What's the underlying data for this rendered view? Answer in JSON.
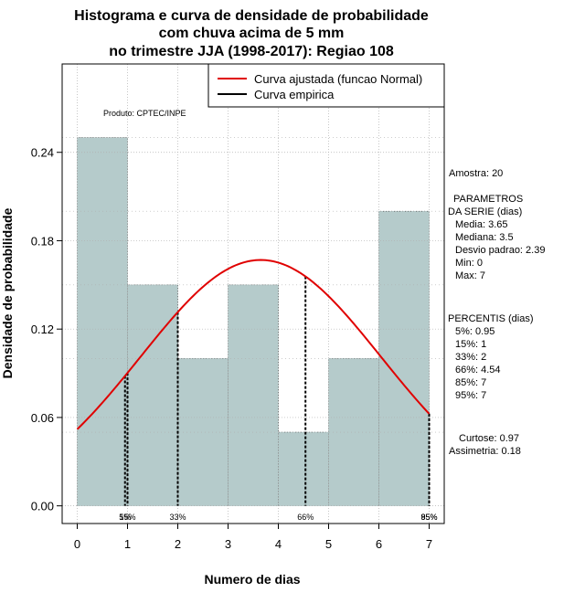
{
  "chart_data": {
    "type": "bar",
    "title_lines": [
      "Histograma e curva de densidade de probabilidade",
      "com chuva acima de 5 mm",
      "no trimestre JJA (1998-2017): Regiao 108"
    ],
    "xlabel": "Numero de dias",
    "ylabel": "Densidade de probabilidade",
    "xlim": [
      -0.3,
      7.3
    ],
    "ylim": [
      -0.012,
      0.3
    ],
    "x_ticks": [
      0,
      1,
      2,
      3,
      4,
      5,
      6,
      7
    ],
    "y_ticks": [
      0.0,
      0.06,
      0.12,
      0.18,
      0.24
    ],
    "y_tick_labels": [
      "0.00",
      "0.06",
      "0.12",
      "0.18",
      "0.24"
    ],
    "bins": [
      {
        "start": 0,
        "end": 1,
        "density": 0.25
      },
      {
        "start": 1,
        "end": 2,
        "density": 0.15
      },
      {
        "start": 2,
        "end": 3,
        "density": 0.1
      },
      {
        "start": 3,
        "end": 4,
        "density": 0.15
      },
      {
        "start": 4,
        "end": 5,
        "density": 0.05
      },
      {
        "start": 5,
        "end": 6,
        "density": 0.1
      },
      {
        "start": 6,
        "end": 7,
        "density": 0.2
      }
    ],
    "normal_curve": {
      "mean": 3.65,
      "sd": 2.39,
      "x_range": [
        0,
        7
      ]
    },
    "percentile_lines": [
      {
        "label": "5%",
        "x": 0.95
      },
      {
        "label": "15%",
        "x": 1
      },
      {
        "label": "33%",
        "x": 2
      },
      {
        "label": "66%",
        "x": 4.54
      },
      {
        "label": "85%",
        "x": 7
      },
      {
        "label": "95%",
        "x": 7
      }
    ],
    "legend": {
      "position": "top-right",
      "entries": [
        {
          "label": "Curva ajustada (funcao Normal)",
          "color": "#ff0000"
        },
        {
          "label": "Curva empirica",
          "color": "#000000"
        }
      ]
    },
    "product_label": "Produto: CPTEC/INPE",
    "colors": {
      "bar_fill": "#b5cbcb",
      "bar_stroke": "#b5cbcb",
      "curve": "#e00000",
      "grid": "#b0b0b0"
    },
    "grid": true
  },
  "stats_panel": {
    "amostra": "Amostra: 20",
    "parametros_title_1": "PARAMETROS",
    "parametros_title_2": "DA SERIE (dias)",
    "media": "Media: 3.65",
    "mediana": "Mediana: 3.5",
    "desvio": "Desvio padrao: 2.39",
    "min": "Min: 0",
    "max": "Max: 7",
    "percentis_title": "PERCENTIS (dias)",
    "p5": "5%: 0.95",
    "p15": "15%: 1",
    "p33": "33%: 2",
    "p66": "66%: 4.54",
    "p85": "85%: 7",
    "p95": "95%: 7",
    "curtose": "Curtose: 0.97",
    "assimetria": "Assimetria: 0.18"
  }
}
